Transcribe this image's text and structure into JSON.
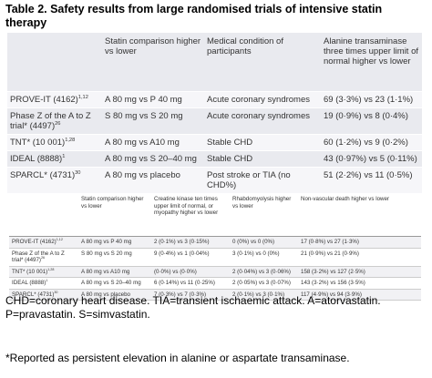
{
  "title": "Table 2. Safety results from large randomised trials of intensive statin therapy",
  "table1": {
    "header": [
      "Statin comparison higher vs lower",
      "Medical condition of participants",
      "Alanine transaminase three times upper limit of normal higher vs lower"
    ],
    "rows": [
      {
        "study": "PROVE-IT (4162)",
        "ref": "1,12",
        "cells": [
          "A 80 mg vs P 40 mg",
          "Acute coronary syndromes",
          "69 (3·3%) vs 23 (1·1%)"
        ]
      },
      {
        "study": "Phase Z of the A to Z trial* (4497)",
        "ref": "26",
        "cells": [
          "S 80 mg vs S 20 mg",
          "Acute coronary syndromes",
          "19 (0·9%) vs 8 (0·4%)"
        ]
      },
      {
        "study": "TNT* (10 001)",
        "ref": "1,28",
        "cells": [
          "A 80 mg vs A10 mg",
          "Stable CHD",
          "60 (1·2%) vs 9 (0·2%)"
        ]
      },
      {
        "study": "IDEAL (8888)",
        "ref": "1",
        "cells": [
          "A 80 mg vs S 20–40 mg",
          "Stable CHD",
          "43 (0·97%) vs 5 (0·11%)"
        ]
      },
      {
        "study": "SPARCL* (4731)",
        "ref": "30",
        "cells": [
          "A 80 mg vs placebo",
          "Post stroke or TIA (no CHD%)",
          "51 (2·2%) vs 11 (0·5%)"
        ]
      }
    ]
  },
  "table2": {
    "header": [
      "Statin comparison higher vs lower",
      "Creatine kinase ten times upper limit of normal, or myopathy higher vs lower",
      "Rhabdomyolysis higher vs lower",
      "Non-vascular death higher vs lower"
    ],
    "rows": [
      {
        "study": "PROVE-IT (4162)",
        "ref": "1,12",
        "cells": [
          "A 80 mg vs P 40 mg",
          "2 (0·1%) vs 3 (0·15%)",
          "0 (0%) vs 0 (0%)",
          "17 (0·8%) vs 27 (1·3%)"
        ]
      },
      {
        "study": "Phase Z of the A to Z trial* (4497)",
        "ref": "26",
        "cells": [
          "S 80 mg vs S 20 mg",
          "9 (0·4%) vs 1 (0·04%)",
          "3 (0·1%) vs 0 (0%)",
          "21 (0·9%) vs 21 (0·9%)"
        ]
      },
      {
        "study": "TNT* (10 001)",
        "ref": "1,28",
        "cells": [
          "A 80 mg vs A10 mg",
          "(0·0%) vs (0·0%)",
          "2 (0·04%) vs 3 (0·06%)",
          "158 (3·2%) vs 127 (2·5%)"
        ]
      },
      {
        "study": "IDEAL (8888)",
        "ref": "1",
        "cells": [
          "A 80 mg vs S 20–40 mg",
          "6 (0·14%) vs 11 (0·25%)",
          "2 (0·05%) vs 3 (0·07%)",
          "143 (3·2%) vs 156 (3·5%)"
        ]
      },
      {
        "study": "SPARCL* (4731)",
        "ref": "30",
        "cells": [
          "A 80 mg vs placebo",
          "7 (0·3%) vs 7 (0·3%)",
          "2 (0·1%) vs 3 (0·1%)",
          "117 (4·9%) vs 94 (3·9%)"
        ]
      }
    ]
  },
  "footnotes": [
    "CHD=coronary heart disease. TIA=transient ischaemic attack. A=atorvastatin. P=pravastatin. S=simvastatin.",
    "*Reported as persistent elevation in alanine or aspartate transaminase."
  ]
}
